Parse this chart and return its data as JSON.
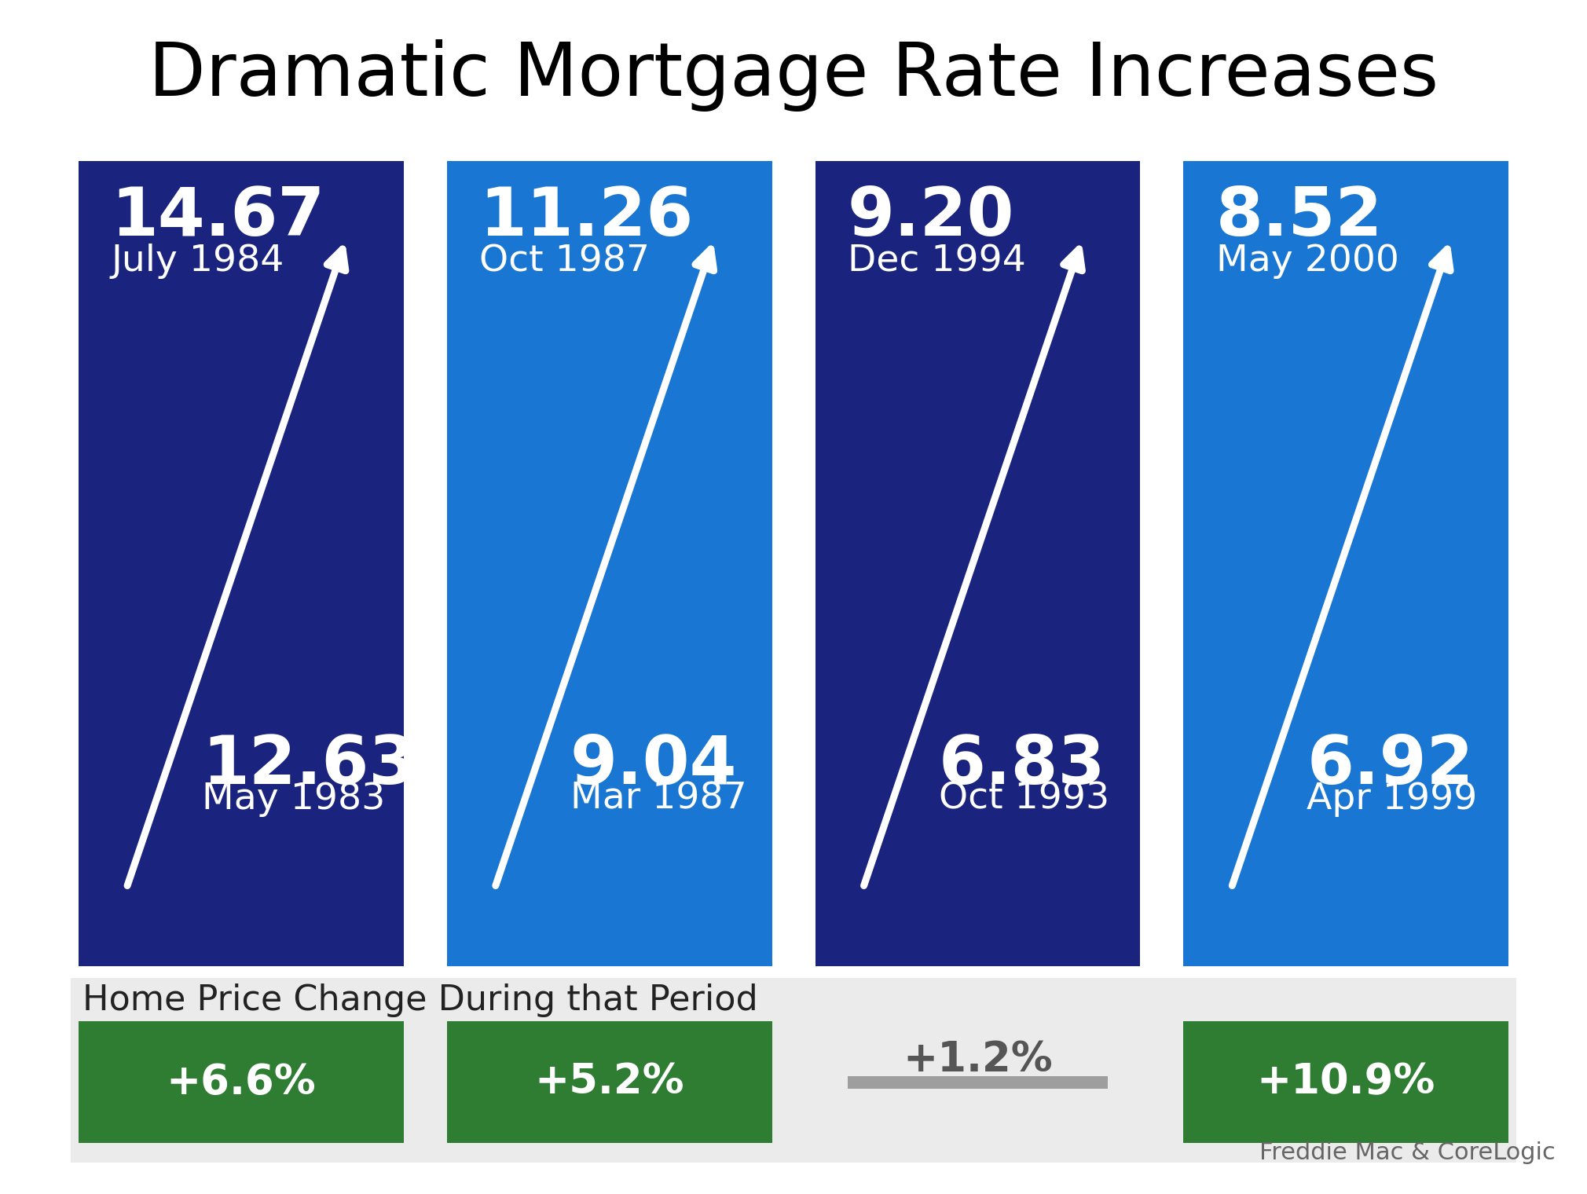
{
  "title": "Dramatic Mortgage Rate Increases",
  "background_color": "#ffffff",
  "cards": [
    {
      "bg_color": "#1a237e",
      "top_value": "14.67",
      "top_date": "July 1984",
      "bottom_value": "12.63",
      "bottom_date": "May 1983"
    },
    {
      "bg_color": "#1976d2",
      "top_value": "11.26",
      "top_date": "Oct 1987",
      "bottom_value": "9.04",
      "bottom_date": "Mar 1987"
    },
    {
      "bg_color": "#1a237e",
      "top_value": "9.20",
      "top_date": "Dec 1994",
      "bottom_value": "6.83",
      "bottom_date": "Oct 1993"
    },
    {
      "bg_color": "#1976d2",
      "top_value": "8.52",
      "top_date": "May 2000",
      "bottom_value": "6.92",
      "bottom_date": "Apr 1999"
    }
  ],
  "home_price_label": "Home Price Change During that Period",
  "home_price_changes": [
    "+6.6%",
    "+5.2%",
    "+1.2%",
    "+10.9%"
  ],
  "home_price_colors": [
    "#2e7d32",
    "#2e7d32",
    "#9e9e9e",
    "#2e7d32"
  ],
  "home_price_text_colors": [
    "#ffffff",
    "#ffffff",
    "#555555",
    "#ffffff"
  ],
  "source_text": "Freddie Mac & CoreLogic",
  "title_fontsize": 68,
  "value_fontsize": 62,
  "date_fontsize": 34,
  "label_fontsize": 32,
  "pct_fontsize": 38,
  "source_fontsize": 22
}
